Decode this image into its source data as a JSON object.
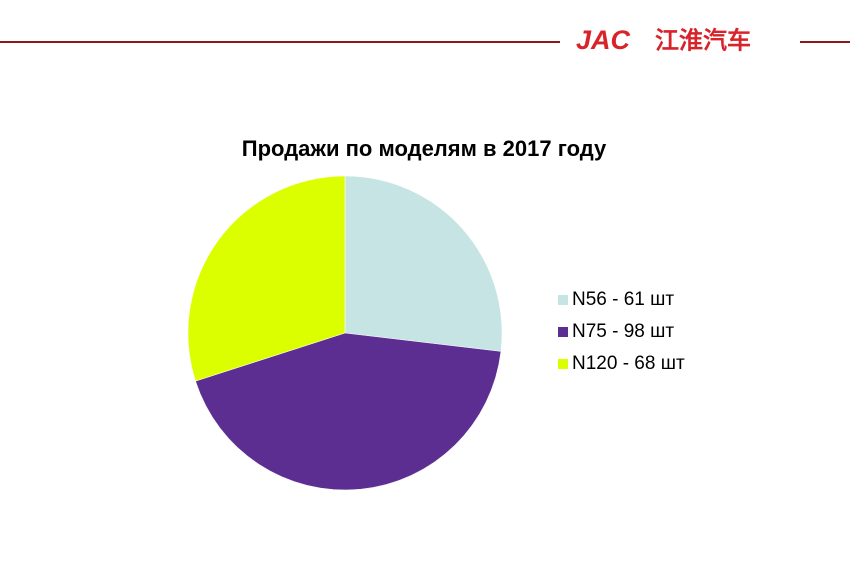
{
  "header": {
    "logo": "JAC",
    "logo_cn": "江淮汽车"
  },
  "chart_data": {
    "type": "pie",
    "title": "Продажи по моделям в 2017 году",
    "categories": [
      "N56 - 61 шт",
      "N75 - 98 шт",
      "N120 - 68 шт"
    ],
    "values": [
      61,
      98,
      68
    ],
    "colors": [
      "#c6e4e4",
      "#5c2e92",
      "#dcff00"
    ],
    "legend": "right"
  }
}
